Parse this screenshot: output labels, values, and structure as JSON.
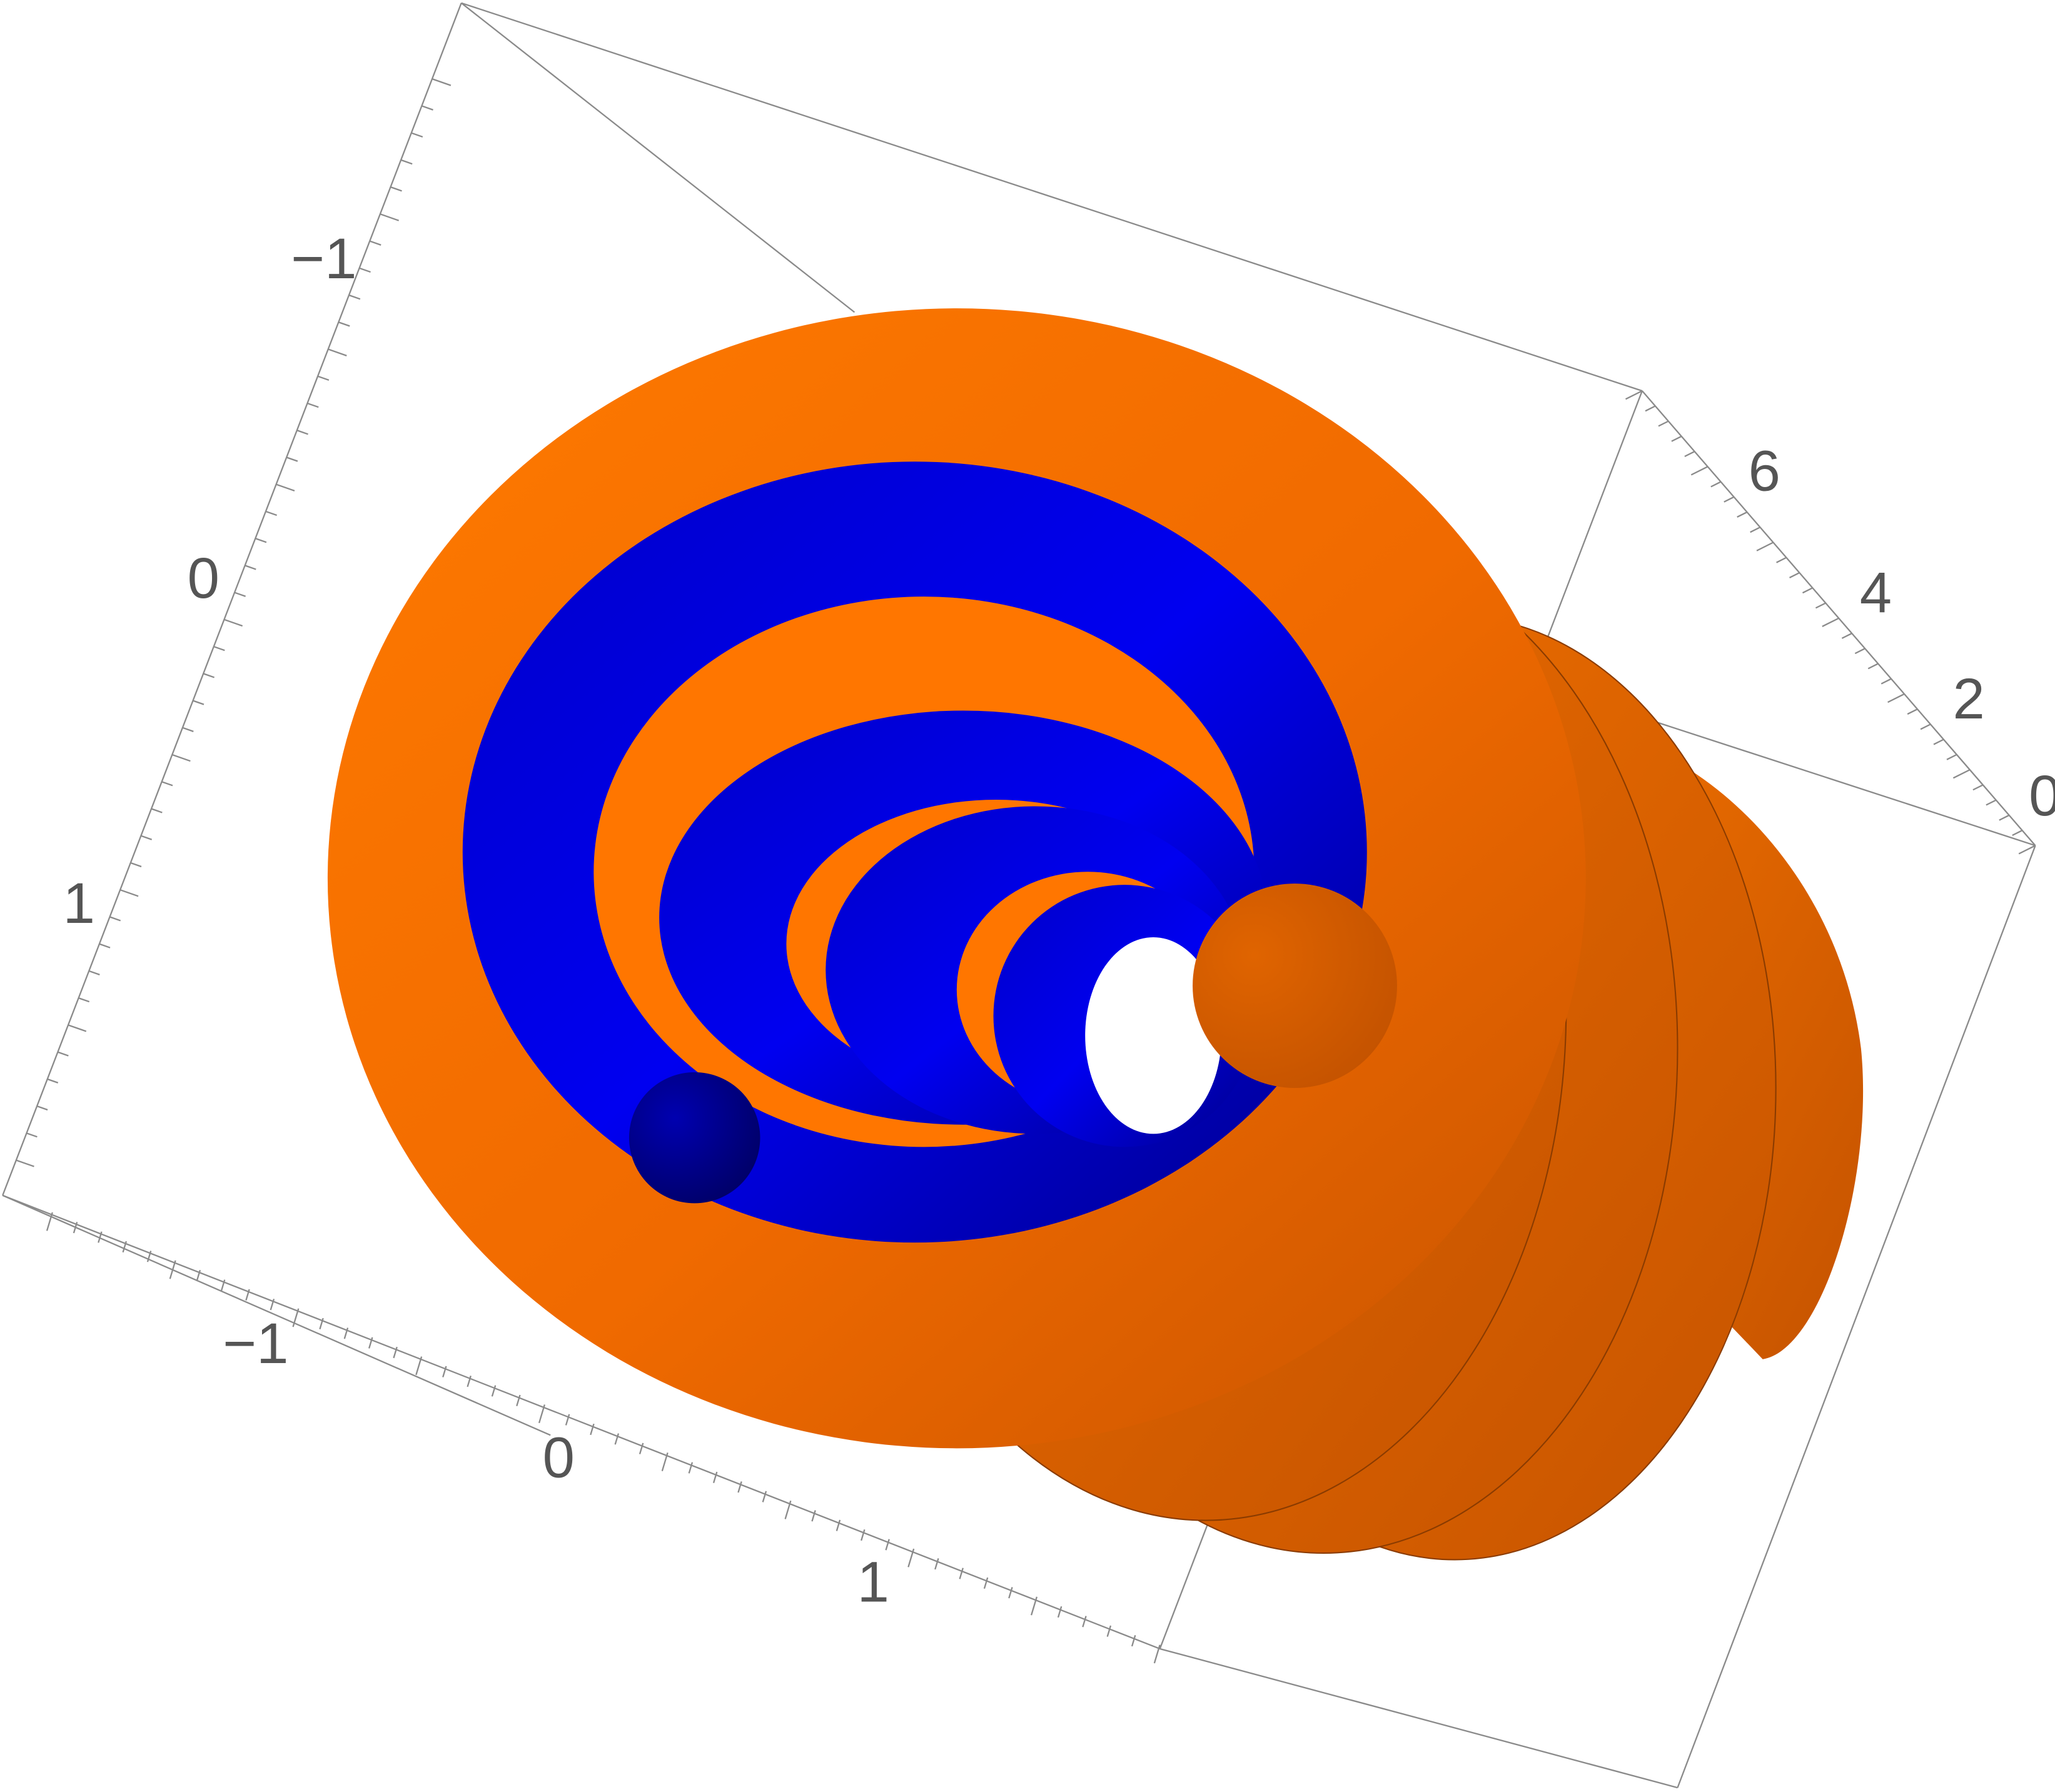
{
  "chart_data": {
    "type": "3d-surface",
    "surfaces": [
      {
        "kind": "helical-tube",
        "color": "#0a0af5",
        "shade": "#000070"
      },
      {
        "kind": "helical-tube",
        "color": "#ff7300",
        "shade": "#b04d00"
      }
    ],
    "axes": {
      "left": {
        "ticks": [
          {
            "label": "−1"
          },
          {
            "label": "0"
          },
          {
            "label": "1"
          }
        ]
      },
      "bottom": {
        "ticks": [
          {
            "label": "−1"
          },
          {
            "label": "0"
          },
          {
            "label": "1"
          }
        ]
      },
      "right": {
        "ticks": [
          {
            "label": "0"
          },
          {
            "label": "2"
          },
          {
            "label": "4"
          },
          {
            "label": "6"
          }
        ]
      }
    },
    "box": true,
    "axes_labels": false,
    "legend": false
  }
}
